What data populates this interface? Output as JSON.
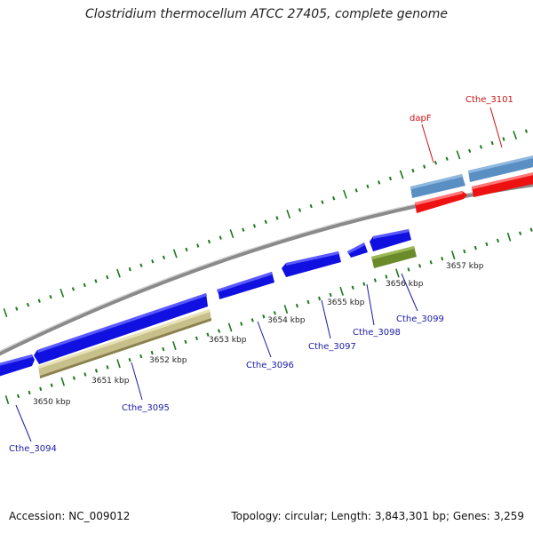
{
  "title": "Clostridium thermocellum ATCC 27405, complete genome",
  "footer": {
    "accession": "Accession: NC_009012",
    "summary": "Topology: circular; Length: 3,843,301 bp; Genes: 3,259"
  },
  "kbp_labels": [
    "3650 kbp",
    "3651 kbp",
    "3652 kbp",
    "3653 kbp",
    "3654 kbp",
    "3655 kbp",
    "3656 kbp",
    "3657 kbp"
  ],
  "gene_labels": [
    "Cthe_3094",
    "Cthe_3095",
    "Cthe_3096",
    "Cthe_3097",
    "Cthe_3098",
    "Cthe_3099",
    "dapF",
    "Cthe_3101"
  ],
  "colors": {
    "backbone": "#8a8a8a",
    "cds_blue": "#1010e0",
    "cds_khaki": "#c8c08a",
    "cds_olive": "#6b8a2a",
    "cds_steel": "#5a8fc4",
    "cds_red": "#ee1111",
    "ticks": "#1b7a1b",
    "label_blue": "#1a1aa6",
    "label_red": "#cc1111"
  }
}
